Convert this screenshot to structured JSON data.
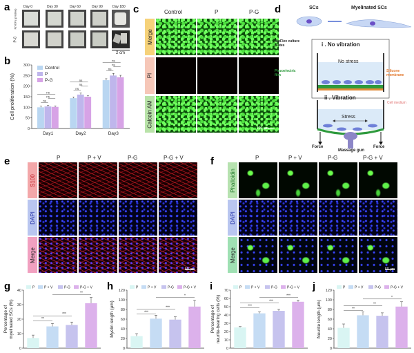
{
  "panel_labels": {
    "a": "a",
    "b": "b",
    "c": "c",
    "d": "d",
    "e": "e",
    "f": "f",
    "g": "g",
    "h": "h",
    "i": "i",
    "j": "j"
  },
  "panel_a": {
    "columns": [
      "Day 0",
      "Day 30",
      "Day 60",
      "Day 90",
      "Day 180"
    ],
    "rows": [
      "P(VDF) (pristine)",
      "P-G"
    ],
    "scale": "2 cm"
  },
  "panel_c": {
    "columns": [
      "Control",
      "P",
      "P-G"
    ],
    "rows": [
      "Merge",
      "PI",
      "Calcein AM"
    ],
    "scale": "100 μm",
    "colors": {
      "merge": "#f6d27a",
      "pi": "#f6c7b8",
      "calcein": "#b9e3a9"
    }
  },
  "panel_d": {
    "top_left": "SCs",
    "top_right": "Myelinated SCs",
    "i_title": "i . No vibration",
    "no_stress": "No stress",
    "bioflex": "BioFlex culture plates",
    "piezo": "Piezoelectric film",
    "silicone": "Silicone membrane",
    "ii_title": "ii . Vibration",
    "cell_medium": "Cell medium",
    "stress": "Stress",
    "force_left": "Force",
    "force_right": "Force",
    "massage": "Massage gun"
  },
  "panel_e": {
    "columns": [
      "P",
      "P + V",
      "P-G",
      "P-G + V"
    ],
    "rows": [
      "S100",
      "DAPI",
      "Merge"
    ],
    "scale": "50 μm",
    "colors": {
      "s100": "#f3a7a9",
      "dapi": "#b9c6f0",
      "merge": "#f1a0c0"
    }
  },
  "panel_f": {
    "columns": [
      "P",
      "P + V",
      "P-G",
      "P-G + V"
    ],
    "rows": [
      "Phalloidin",
      "DAPI",
      "Merge"
    ],
    "scale": "50 μm",
    "colors": {
      "phalloidin": "#b7e2b0",
      "dapi": "#b9c6f0",
      "merge": "#9fe0b3"
    }
  },
  "legend_bcd": [
    "Control",
    "P",
    "P-G"
  ],
  "legend_gj": [
    "P",
    "P + V",
    "P-G",
    "P-G + V"
  ],
  "chart_data": [
    {
      "id": "b",
      "type": "bar",
      "title": "",
      "xlabel": "",
      "ylabel": "Cell proliferation (%)",
      "categories": [
        "Day1",
        "Day2",
        "Day3"
      ],
      "ylim": [
        0,
        300
      ],
      "yticks": [
        0,
        50,
        100,
        150,
        200,
        250,
        300
      ],
      "series": [
        {
          "name": "Control",
          "values": [
            100,
            143,
            228
          ],
          "errors": [
            6,
            6,
            7
          ],
          "color": "#b9d6f1"
        },
        {
          "name": "P",
          "values": [
            104,
            160,
            250
          ],
          "errors": [
            6,
            7,
            10
          ],
          "color": "#bfb6ec"
        },
        {
          "name": "P-G",
          "values": [
            102,
            150,
            242
          ],
          "errors": [
            5,
            5,
            9
          ],
          "color": "#d7a3e6"
        }
      ],
      "annotations": [
        "ns",
        "ns",
        "ns",
        "ns",
        "ns",
        "ns",
        "ns",
        "ns",
        "ns"
      ]
    },
    {
      "id": "g",
      "type": "bar",
      "ylabel": "Percentage of myelinated SCs (%)",
      "categories": [
        "P",
        "P + V",
        "P-G",
        "P-G + V"
      ],
      "ylim": [
        0,
        40
      ],
      "yticks": [
        0,
        10,
        20,
        30,
        40
      ],
      "series": [
        {
          "name": "value",
          "values": [
            7,
            15,
            16,
            31
          ],
          "errors": [
            2,
            2,
            2,
            4
          ],
          "colors": [
            "#d9f5f3",
            "#c5dcf4",
            "#c6c3ee",
            "#dcb1eb"
          ]
        }
      ],
      "annotations": [
        "**",
        "***",
        "**"
      ]
    },
    {
      "id": "h",
      "type": "bar",
      "ylabel": "Myelin length (μm)",
      "categories": [
        "P",
        "P + V",
        "P-G",
        "P-G + V"
      ],
      "ylim": [
        0,
        120
      ],
      "yticks": [
        0,
        20,
        40,
        60,
        80,
        100,
        120
      ],
      "series": [
        {
          "name": "value",
          "values": [
            25,
            61,
            59,
            86
          ],
          "errors": [
            5,
            7,
            6,
            13
          ],
          "colors": [
            "#d9f5f3",
            "#c5dcf4",
            "#c6c3ee",
            "#dcb1eb"
          ]
        }
      ],
      "annotations": [
        "***",
        "***",
        "*"
      ]
    },
    {
      "id": "i",
      "type": "bar",
      "ylabel": "Percentage of neurite-bearing cells (%)",
      "categories": [
        "P",
        "P + V",
        "P-G",
        "P-G + V"
      ],
      "ylim": [
        0,
        70
      ],
      "yticks": [
        0,
        10,
        20,
        30,
        40,
        50,
        60,
        70
      ],
      "series": [
        {
          "name": "value",
          "values": [
            25,
            42,
            45,
            56
          ],
          "errors": [
            1,
            2,
            2,
            2
          ],
          "colors": [
            "#d9f5f3",
            "#c5dcf4",
            "#c6c3ee",
            "#dcb1eb"
          ]
        }
      ],
      "annotations": [
        "***",
        "***",
        "***"
      ]
    },
    {
      "id": "j",
      "type": "bar",
      "ylabel": "Neurite length (μm)",
      "categories": [
        "P",
        "P + V",
        "P-G",
        "P-G + V"
      ],
      "ylim": [
        0,
        120
      ],
      "yticks": [
        0,
        20,
        40,
        60,
        80,
        100,
        120
      ],
      "series": [
        {
          "name": "value",
          "values": [
            42,
            68,
            67,
            86
          ],
          "errors": [
            8,
            7,
            6,
            10
          ],
          "colors": [
            "#d9f5f3",
            "#c5dcf4",
            "#c6c3ee",
            "#dcb1eb"
          ]
        }
      ],
      "annotations": [
        "**",
        "**",
        "*"
      ]
    }
  ]
}
